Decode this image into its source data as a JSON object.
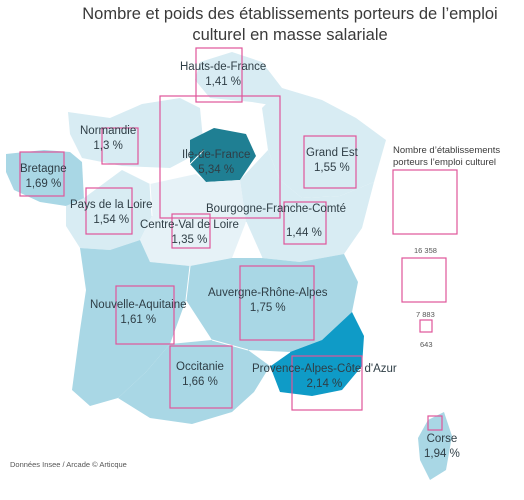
{
  "title_line1": "Nombre et poids des établissements porteurs de l’emploi",
  "title_line2": "culturel en masse salariale",
  "regions": [
    {
      "id": "hauts-de-france",
      "name": "Hauts-de-France",
      "share": "1,41 %",
      "color": "#d8ecf3"
    },
    {
      "id": "normandie",
      "name": "Normandie",
      "share": "1,3 %",
      "color": "#d8ecf3"
    },
    {
      "id": "bretagne",
      "name": "Bretagne",
      "share": "1,69 %",
      "color": "#a9d7e5"
    },
    {
      "id": "ile-de-france",
      "name": "Ile-de-France",
      "share": "5,34 %",
      "color": "#1f7f93"
    },
    {
      "id": "grand-est",
      "name": "Grand Est",
      "share": "1,55 %",
      "color": "#d8ecf3"
    },
    {
      "id": "pays-de-la-loire",
      "name": "Pays de la Loire",
      "share": "1,54 %",
      "color": "#d8ecf3"
    },
    {
      "id": "centre-val-de-loire",
      "name": "Centre-Val de Loire",
      "share": "1,35 %",
      "color": "#e6f2f7"
    },
    {
      "id": "bourgogne-franche-comte",
      "name": "Bourgogne-Franche-Comté",
      "share": "1,44 %",
      "color": "#d8ecf3"
    },
    {
      "id": "nouvelle-aquitaine",
      "name": "Nouvelle-Aquitaine",
      "share": "1,61 %",
      "color": "#a9d7e5"
    },
    {
      "id": "auvergne-rhone-alpes",
      "name": "Auvergne-Rhône-Alpes",
      "share": "1,75 %",
      "color": "#a9d7e5"
    },
    {
      "id": "occitanie",
      "name": "Occitanie",
      "share": "1,66 %",
      "color": "#a9d7e5"
    },
    {
      "id": "provence-alpes-cote-d-azur",
      "name": "Provence-Alpes-Côte d'Azur",
      "share": "2,14 %",
      "color": "#0f9bc7"
    },
    {
      "id": "corse",
      "name": "Corse",
      "share": "1,94 %",
      "color": "#a9d7e5"
    }
  ],
  "legend": {
    "title_line1": "Nombre d’établissements",
    "title_line2": "porteurs l’emploi culturel",
    "values": [
      "16 358",
      "7 883",
      "643"
    ],
    "square_color": "#e0559a"
  },
  "footer": "Données Insee / Arcade © Articque"
}
